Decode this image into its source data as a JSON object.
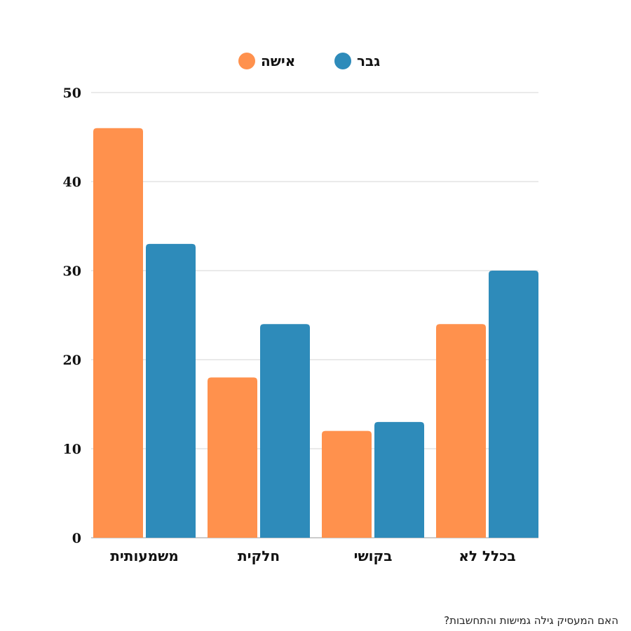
{
  "chart_data": {
    "type": "bar",
    "categories": [
      "משמעותית",
      "חלקית",
      "בקושי",
      "בכלל לא"
    ],
    "series": [
      {
        "name": "אישה",
        "color": "#FF914D",
        "values": [
          46,
          18,
          12,
          24
        ]
      },
      {
        "name": "גבר",
        "color": "#2E8BBA",
        "values": [
          33,
          24,
          13,
          30
        ]
      }
    ],
    "ylim": [
      0,
      50
    ],
    "yticks": [
      0,
      10,
      20,
      30,
      40,
      50
    ],
    "grid": true,
    "legend": "top-center",
    "title": "",
    "xlabel": "",
    "ylabel": ""
  },
  "footnote": "האם המעסיק גילה גמישות והתחשבות?"
}
